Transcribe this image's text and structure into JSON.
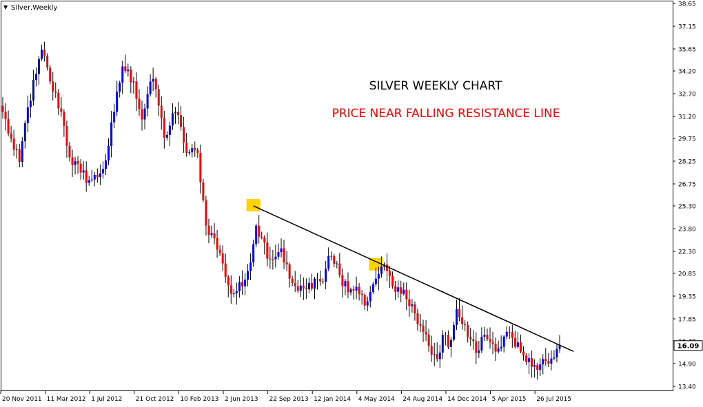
{
  "symbol_label": "Silver,Weekly",
  "annotations": {
    "title": "SILVER WEEKLY CHART",
    "subtitle": "PRICE NEAR FALLING RESISTANCE LINE",
    "title_color": "#000000",
    "subtitle_color": "#ff0000"
  },
  "colors": {
    "bull": "#0000ff",
    "bear": "#ff0000",
    "wick": "#000000",
    "marker": "#ffd200",
    "trendline": "#000000",
    "axis": "#000000",
    "price_box_border": "#000000"
  },
  "chart_data": {
    "type": "candlestick",
    "ylim": [
      13.4,
      38.65
    ],
    "y_ticks": [
      "38.65",
      "37.15",
      "35.65",
      "34.20",
      "32.70",
      "31.20",
      "29.75",
      "28.25",
      "26.75",
      "25.30",
      "23.80",
      "22.30",
      "20.85",
      "19.35",
      "17.85",
      "16.40",
      "14.90",
      "13.40"
    ],
    "x_ticks": [
      "20 Nov 2011",
      "11 Mar 2012",
      "1 Jul 2012",
      "21 Oct 2012",
      "10 Feb 2013",
      "2 Jun 2013",
      "22 Sep 2013",
      "12 Jan 2014",
      "4 May 2014",
      "24 Aug 2014",
      "14 Dec 2014",
      "5 Apr 2015",
      "26 Jul 2015"
    ],
    "current_price": "16.09",
    "anchors": [
      {
        "i": 0,
        "p": 31.5
      },
      {
        "i": 4,
        "p": 29.0
      },
      {
        "i": 6,
        "p": 28.2
      },
      {
        "i": 9,
        "p": 31.8
      },
      {
        "i": 12,
        "p": 34.0
      },
      {
        "i": 14,
        "p": 35.6
      },
      {
        "i": 17,
        "p": 33.5
      },
      {
        "i": 21,
        "p": 31.5
      },
      {
        "i": 24,
        "p": 28.5
      },
      {
        "i": 28,
        "p": 27.5
      },
      {
        "i": 31,
        "p": 27.0
      },
      {
        "i": 34,
        "p": 27.2
      },
      {
        "i": 37,
        "p": 28.3
      },
      {
        "i": 40,
        "p": 31.5
      },
      {
        "i": 43,
        "p": 34.5
      },
      {
        "i": 47,
        "p": 33.5
      },
      {
        "i": 50,
        "p": 31.0
      },
      {
        "i": 53,
        "p": 33.5
      },
      {
        "i": 55,
        "p": 33.0
      },
      {
        "i": 58,
        "p": 29.8
      },
      {
        "i": 62,
        "p": 31.5
      },
      {
        "i": 64,
        "p": 30.5
      },
      {
        "i": 66,
        "p": 28.8
      },
      {
        "i": 70,
        "p": 28.8
      },
      {
        "i": 73,
        "p": 24.0
      },
      {
        "i": 75,
        "p": 23.5
      },
      {
        "i": 79,
        "p": 21.5
      },
      {
        "i": 82,
        "p": 19.5
      },
      {
        "i": 86,
        "p": 20.0
      },
      {
        "i": 88,
        "p": 21.0
      },
      {
        "i": 91,
        "p": 24.0
      },
      {
        "i": 93,
        "p": 23.2
      },
      {
        "i": 96,
        "p": 21.8
      },
      {
        "i": 100,
        "p": 22.5
      },
      {
        "i": 103,
        "p": 20.5
      },
      {
        "i": 106,
        "p": 19.7
      },
      {
        "i": 109,
        "p": 19.8
      },
      {
        "i": 112,
        "p": 20.5
      },
      {
        "i": 115,
        "p": 20.3
      },
      {
        "i": 117,
        "p": 22.0
      },
      {
        "i": 120,
        "p": 21.5
      },
      {
        "i": 122,
        "p": 20.0
      },
      {
        "i": 125,
        "p": 19.8
      },
      {
        "i": 128,
        "p": 19.5
      },
      {
        "i": 131,
        "p": 19.0
      },
      {
        "i": 134,
        "p": 20.5
      },
      {
        "i": 136,
        "p": 21.3
      },
      {
        "i": 138,
        "p": 21.0
      },
      {
        "i": 140,
        "p": 20.0
      },
      {
        "i": 143,
        "p": 19.5
      },
      {
        "i": 147,
        "p": 18.8
      },
      {
        "i": 149,
        "p": 17.5
      },
      {
        "i": 151,
        "p": 17.0
      },
      {
        "i": 154,
        "p": 15.5
      },
      {
        "i": 156,
        "p": 15.2
      },
      {
        "i": 158,
        "p": 16.8
      },
      {
        "i": 160,
        "p": 16.0
      },
      {
        "i": 163,
        "p": 18.5
      },
      {
        "i": 165,
        "p": 17.5
      },
      {
        "i": 168,
        "p": 16.5
      },
      {
        "i": 170,
        "p": 15.6
      },
      {
        "i": 173,
        "p": 16.8
      },
      {
        "i": 176,
        "p": 16.2
      },
      {
        "i": 179,
        "p": 16.0
      },
      {
        "i": 181,
        "p": 17.0
      },
      {
        "i": 184,
        "p": 16.0
      },
      {
        "i": 186,
        "p": 15.7
      },
      {
        "i": 188,
        "p": 15.0
      },
      {
        "i": 191,
        "p": 14.8
      },
      {
        "i": 194,
        "p": 15.2
      },
      {
        "i": 196,
        "p": 14.9
      },
      {
        "i": 198,
        "p": 15.3
      },
      {
        "i": 200,
        "p": 16.09
      }
    ],
    "trendline": {
      "from": {
        "i": 90,
        "p": 25.3
      },
      "to": {
        "i": 205,
        "p": 15.7
      }
    },
    "markers": [
      {
        "i": 90,
        "p": 25.3
      },
      {
        "i": 134,
        "p": 21.4
      }
    ]
  }
}
